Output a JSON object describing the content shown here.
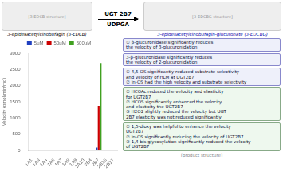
{
  "chart_data": {
    "type": "bar",
    "categories": [
      "1A1",
      "1A3",
      "1A4",
      "1A6",
      "1A7",
      "1A8",
      "1A9",
      "1A10",
      "2B4",
      "2B7",
      "2B15",
      "2B17"
    ],
    "series": [
      {
        "name": "5μM",
        "color": "#2040c0",
        "values": [
          0,
          0,
          0,
          0,
          0,
          0,
          0,
          0,
          0,
          85,
          0,
          0
        ]
      },
      {
        "name": "50μM",
        "color": "#cc0000",
        "values": [
          0,
          0,
          0,
          0,
          0,
          0,
          0,
          0,
          0,
          1380,
          0,
          0
        ]
      },
      {
        "name": "500μM",
        "color": "#40a020",
        "values": [
          0,
          0,
          0,
          0,
          0,
          0,
          0,
          0,
          0,
          2700,
          0,
          0
        ]
      }
    ],
    "ylabel": "Velocity (pmol/min/mg)",
    "ylim": [
      0,
      3000
    ],
    "yticks": [
      0,
      500,
      1000,
      1500,
      2000,
      2500,
      3000
    ],
    "grid": false,
    "legend": "top",
    "annotations": [
      "UGT 2B7",
      "UDPGA",
      "3-epidesacetylcinobufagin (3-EDCB)",
      "3-epidesacetylcinobufagin-glucuronate (3-EDCBG)",
      "[3-EDCB structure]",
      "[3-EDCBG structure]",
      "① β-glucuronidase significantly reduces\nthe velocity of 3-glucuronidation",
      "3-β-glucuronidase significantly reduces\nthe velocity of 2-glucuronidation",
      "① 4,5-OS significantly reduced substrate selectivity\nand velocity of HLM at UGT2B7\n② In-OS had the high velocity and substrate selectivity",
      "① HCOAc reduced the velocity and elasticity\nfor UGT2B7\n② HCOS significantly enhanced the velocity\nand elasticity the UGT2B7\n③ H2O2 slightly reduced the velocity but UGT\n2B7 elasticity was not reduced significantly",
      "① 1,5-dioxy was helpful to enhance the velocity\nUGT2B7\n② In-OS significantly reducing the velocity of UGT2B7\n③ 1,4-bis-glycosylation significantly reduced the velocity\nof UGT2B7",
      "[product structure]"
    ]
  }
}
